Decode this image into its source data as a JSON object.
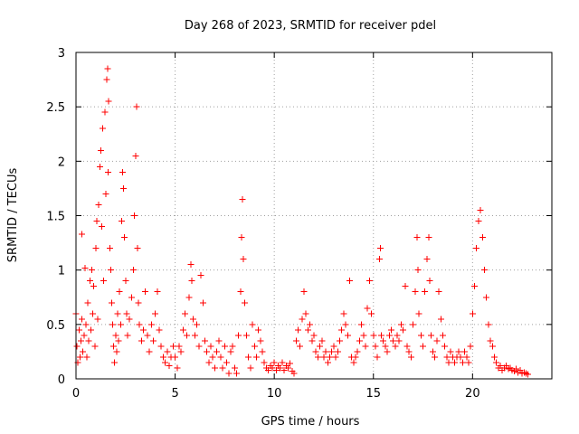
{
  "chart_data": {
    "type": "scatter",
    "title": "Day 268 of 2023, SRMTID for receiver pdel",
    "xlabel": "GPS time / hours",
    "ylabel": "SRMTID / TECUs",
    "xlim": [
      0,
      24
    ],
    "ylim": [
      0,
      3
    ],
    "x_ticks": [
      0,
      5,
      10,
      15,
      20
    ],
    "x_tick_labels": [
      "0",
      "5",
      "10",
      "15",
      "20"
    ],
    "y_ticks": [
      0,
      0.5,
      1,
      1.5,
      2,
      2.5,
      3
    ],
    "y_tick_labels": [
      "0",
      "0.5",
      "1",
      "1.5",
      "2",
      "2.5",
      "3"
    ],
    "grid": true,
    "marker": "plus",
    "series": [
      {
        "name": "SRMTID",
        "color": "#ff0000",
        "points": [
          [
            0.0,
            0.6
          ],
          [
            0.05,
            0.3
          ],
          [
            0.1,
            0.15
          ],
          [
            0.15,
            0.45
          ],
          [
            0.2,
            0.2
          ],
          [
            0.25,
            0.35
          ],
          [
            0.3,
            0.55
          ],
          [
            0.3,
            1.33
          ],
          [
            0.35,
            0.25
          ],
          [
            0.4,
            0.4
          ],
          [
            0.45,
            1.02
          ],
          [
            0.5,
            0.5
          ],
          [
            0.55,
            0.2
          ],
          [
            0.6,
            0.7
          ],
          [
            0.65,
            0.35
          ],
          [
            0.7,
            0.9
          ],
          [
            0.75,
            0.45
          ],
          [
            0.8,
            1.0
          ],
          [
            0.85,
            0.6
          ],
          [
            0.9,
            0.85
          ],
          [
            0.95,
            0.3
          ],
          [
            1.0,
            1.2
          ],
          [
            1.05,
            1.45
          ],
          [
            1.1,
            0.55
          ],
          [
            1.15,
            1.6
          ],
          [
            1.2,
            1.95
          ],
          [
            1.25,
            2.1
          ],
          [
            1.3,
            1.4
          ],
          [
            1.35,
            2.3
          ],
          [
            1.4,
            0.9
          ],
          [
            1.45,
            2.45
          ],
          [
            1.5,
            1.7
          ],
          [
            1.55,
            2.75
          ],
          [
            1.6,
            2.85
          ],
          [
            1.62,
            1.9
          ],
          [
            1.65,
            2.55
          ],
          [
            1.7,
            1.2
          ],
          [
            1.75,
            1.0
          ],
          [
            1.8,
            0.7
          ],
          [
            1.85,
            0.5
          ],
          [
            1.9,
            0.3
          ],
          [
            1.95,
            0.15
          ],
          [
            2.0,
            0.4
          ],
          [
            2.05,
            0.25
          ],
          [
            2.1,
            0.6
          ],
          [
            2.15,
            0.35
          ],
          [
            2.2,
            0.8
          ],
          [
            2.25,
            0.5
          ],
          [
            2.3,
            1.45
          ],
          [
            2.35,
            1.9
          ],
          [
            2.4,
            1.75
          ],
          [
            2.45,
            1.3
          ],
          [
            2.5,
            0.9
          ],
          [
            2.55,
            0.6
          ],
          [
            2.6,
            0.4
          ],
          [
            2.7,
            0.55
          ],
          [
            2.8,
            0.75
          ],
          [
            2.9,
            1.0
          ],
          [
            2.95,
            1.5
          ],
          [
            3.0,
            2.05
          ],
          [
            3.05,
            2.5
          ],
          [
            3.1,
            1.2
          ],
          [
            3.15,
            0.7
          ],
          [
            3.2,
            0.5
          ],
          [
            3.3,
            0.35
          ],
          [
            3.4,
            0.45
          ],
          [
            3.5,
            0.8
          ],
          [
            3.6,
            0.4
          ],
          [
            3.7,
            0.25
          ],
          [
            3.8,
            0.5
          ],
          [
            3.9,
            0.35
          ],
          [
            4.0,
            0.6
          ],
          [
            4.1,
            0.8
          ],
          [
            4.2,
            0.45
          ],
          [
            4.3,
            0.3
          ],
          [
            4.4,
            0.2
          ],
          [
            4.5,
            0.15
          ],
          [
            4.6,
            0.25
          ],
          [
            4.7,
            0.12
          ],
          [
            4.8,
            0.2
          ],
          [
            4.9,
            0.3
          ],
          [
            5.0,
            0.2
          ],
          [
            5.1,
            0.1
          ],
          [
            5.2,
            0.3
          ],
          [
            5.3,
            0.25
          ],
          [
            5.4,
            0.45
          ],
          [
            5.5,
            0.6
          ],
          [
            5.6,
            0.4
          ],
          [
            5.7,
            0.75
          ],
          [
            5.8,
            1.05
          ],
          [
            5.85,
            0.9
          ],
          [
            5.9,
            0.55
          ],
          [
            6.0,
            0.4
          ],
          [
            6.1,
            0.5
          ],
          [
            6.2,
            0.3
          ],
          [
            6.3,
            0.95
          ],
          [
            6.4,
            0.7
          ],
          [
            6.5,
            0.35
          ],
          [
            6.6,
            0.25
          ],
          [
            6.7,
            0.15
          ],
          [
            6.8,
            0.3
          ],
          [
            6.9,
            0.2
          ],
          [
            7.0,
            0.1
          ],
          [
            7.1,
            0.25
          ],
          [
            7.2,
            0.35
          ],
          [
            7.3,
            0.2
          ],
          [
            7.4,
            0.1
          ],
          [
            7.5,
            0.3
          ],
          [
            7.6,
            0.15
          ],
          [
            7.7,
            0.05
          ],
          [
            7.8,
            0.25
          ],
          [
            7.9,
            0.3
          ],
          [
            8.0,
            0.1
          ],
          [
            8.1,
            0.05
          ],
          [
            8.2,
            0.4
          ],
          [
            8.3,
            0.8
          ],
          [
            8.35,
            1.3
          ],
          [
            8.4,
            1.65
          ],
          [
            8.45,
            1.1
          ],
          [
            8.5,
            0.7
          ],
          [
            8.6,
            0.4
          ],
          [
            8.7,
            0.2
          ],
          [
            8.8,
            0.1
          ],
          [
            8.9,
            0.5
          ],
          [
            9.0,
            0.3
          ],
          [
            9.1,
            0.2
          ],
          [
            9.2,
            0.45
          ],
          [
            9.3,
            0.35
          ],
          [
            9.4,
            0.25
          ],
          [
            9.5,
            0.15
          ],
          [
            9.6,
            0.1
          ],
          [
            9.7,
            0.08
          ],
          [
            9.8,
            0.12
          ],
          [
            9.9,
            0.1
          ],
          [
            10.0,
            0.15
          ],
          [
            10.1,
            0.08
          ],
          [
            10.2,
            0.12
          ],
          [
            10.3,
            0.1
          ],
          [
            10.4,
            0.15
          ],
          [
            10.5,
            0.08
          ],
          [
            10.6,
            0.12
          ],
          [
            10.7,
            0.1
          ],
          [
            10.8,
            0.14
          ],
          [
            10.9,
            0.07
          ],
          [
            11.0,
            0.05
          ],
          [
            11.1,
            0.35
          ],
          [
            11.2,
            0.45
          ],
          [
            11.3,
            0.3
          ],
          [
            11.4,
            0.55
          ],
          [
            11.5,
            0.8
          ],
          [
            11.6,
            0.6
          ],
          [
            11.7,
            0.45
          ],
          [
            11.8,
            0.5
          ],
          [
            11.9,
            0.35
          ],
          [
            12.0,
            0.4
          ],
          [
            12.1,
            0.25
          ],
          [
            12.2,
            0.2
          ],
          [
            12.3,
            0.3
          ],
          [
            12.4,
            0.35
          ],
          [
            12.5,
            0.2
          ],
          [
            12.6,
            0.25
          ],
          [
            12.7,
            0.15
          ],
          [
            12.8,
            0.2
          ],
          [
            12.9,
            0.25
          ],
          [
            13.0,
            0.3
          ],
          [
            13.1,
            0.2
          ],
          [
            13.2,
            0.25
          ],
          [
            13.3,
            0.35
          ],
          [
            13.4,
            0.45
          ],
          [
            13.5,
            0.6
          ],
          [
            13.6,
            0.5
          ],
          [
            13.7,
            0.4
          ],
          [
            13.8,
            0.9
          ],
          [
            13.9,
            0.2
          ],
          [
            14.0,
            0.15
          ],
          [
            14.1,
            0.2
          ],
          [
            14.2,
            0.25
          ],
          [
            14.3,
            0.35
          ],
          [
            14.4,
            0.5
          ],
          [
            14.5,
            0.4
          ],
          [
            14.6,
            0.3
          ],
          [
            14.7,
            0.65
          ],
          [
            14.8,
            0.9
          ],
          [
            14.9,
            0.6
          ],
          [
            15.0,
            0.4
          ],
          [
            15.1,
            0.3
          ],
          [
            15.2,
            0.2
          ],
          [
            15.3,
            1.1
          ],
          [
            15.35,
            1.2
          ],
          [
            15.4,
            0.4
          ],
          [
            15.5,
            0.35
          ],
          [
            15.6,
            0.3
          ],
          [
            15.7,
            0.25
          ],
          [
            15.8,
            0.4
          ],
          [
            15.9,
            0.45
          ],
          [
            16.0,
            0.35
          ],
          [
            16.1,
            0.3
          ],
          [
            16.2,
            0.4
          ],
          [
            16.3,
            0.35
          ],
          [
            16.4,
            0.5
          ],
          [
            16.5,
            0.45
          ],
          [
            16.6,
            0.85
          ],
          [
            16.7,
            0.3
          ],
          [
            16.8,
            0.25
          ],
          [
            16.9,
            0.2
          ],
          [
            17.0,
            0.5
          ],
          [
            17.1,
            0.8
          ],
          [
            17.2,
            1.3
          ],
          [
            17.25,
            1.0
          ],
          [
            17.3,
            0.6
          ],
          [
            17.4,
            0.4
          ],
          [
            17.5,
            0.3
          ],
          [
            17.6,
            0.8
          ],
          [
            17.7,
            1.1
          ],
          [
            17.8,
            1.3
          ],
          [
            17.85,
            0.9
          ],
          [
            17.9,
            0.4
          ],
          [
            18.0,
            0.25
          ],
          [
            18.1,
            0.2
          ],
          [
            18.2,
            0.35
          ],
          [
            18.3,
            0.8
          ],
          [
            18.4,
            0.55
          ],
          [
            18.5,
            0.4
          ],
          [
            18.6,
            0.3
          ],
          [
            18.7,
            0.2
          ],
          [
            18.8,
            0.15
          ],
          [
            18.9,
            0.25
          ],
          [
            19.0,
            0.2
          ],
          [
            19.1,
            0.15
          ],
          [
            19.2,
            0.2
          ],
          [
            19.3,
            0.25
          ],
          [
            19.4,
            0.2
          ],
          [
            19.5,
            0.15
          ],
          [
            19.6,
            0.25
          ],
          [
            19.7,
            0.2
          ],
          [
            19.8,
            0.15
          ],
          [
            19.9,
            0.3
          ],
          [
            20.0,
            0.6
          ],
          [
            20.1,
            0.85
          ],
          [
            20.2,
            1.2
          ],
          [
            20.3,
            1.45
          ],
          [
            20.4,
            1.55
          ],
          [
            20.5,
            1.3
          ],
          [
            20.6,
            1.0
          ],
          [
            20.7,
            0.75
          ],
          [
            20.8,
            0.5
          ],
          [
            20.9,
            0.35
          ],
          [
            21.0,
            0.3
          ],
          [
            21.1,
            0.2
          ],
          [
            21.2,
            0.15
          ],
          [
            21.3,
            0.1
          ],
          [
            21.4,
            0.12
          ],
          [
            21.5,
            0.08
          ],
          [
            21.6,
            0.1
          ],
          [
            21.7,
            0.12
          ],
          [
            21.8,
            0.09
          ],
          [
            21.9,
            0.1
          ],
          [
            22.0,
            0.08
          ],
          [
            22.1,
            0.07
          ],
          [
            22.2,
            0.09
          ],
          [
            22.3,
            0.06
          ],
          [
            22.4,
            0.08
          ],
          [
            22.5,
            0.05
          ],
          [
            22.6,
            0.06
          ],
          [
            22.7,
            0.05
          ],
          [
            22.8,
            0.04
          ]
        ]
      }
    ]
  }
}
